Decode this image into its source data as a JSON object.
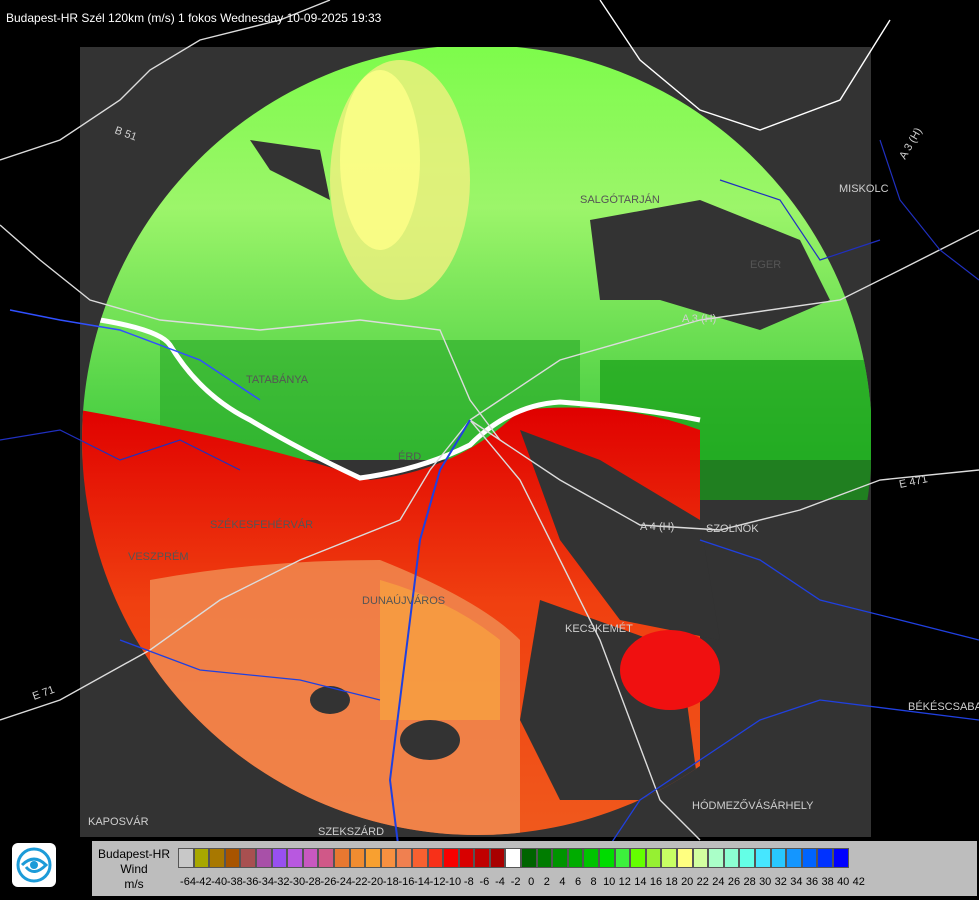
{
  "header": {
    "title": "Budapest-HR Szél 120km (m/s) 1 fokos Wednesday 10-09-2025 19:33"
  },
  "map": {
    "place_labels": [
      {
        "id": "miskolc",
        "text": "MISKOLC"
      },
      {
        "id": "eger",
        "text": "EGER"
      },
      {
        "id": "salgotarjan",
        "text": "SALGÓTARJÁN"
      },
      {
        "id": "tatabanya",
        "text": "TATABÁNYA"
      },
      {
        "id": "erd",
        "text": "ÉRD"
      },
      {
        "id": "szekesfehervar",
        "text": "SZÉKESFEHÉRVÁR"
      },
      {
        "id": "veszprem",
        "text": "VESZPRÉM"
      },
      {
        "id": "dunaujvaros",
        "text": "DUNAÚJVÁROS"
      },
      {
        "id": "kecskemet",
        "text": "KECSKEMÉT"
      },
      {
        "id": "szolnok",
        "text": "SZOLNOK"
      },
      {
        "id": "bekescsaba",
        "text": "BÉKÉSCSABA"
      },
      {
        "id": "hodmezovasarhely",
        "text": "HÓDMEZŐVÁSÁRHELY"
      },
      {
        "id": "kaposvar",
        "text": "KAPOSVÁR"
      },
      {
        "id": "szekszard",
        "text": "SZEKSZÁRD"
      }
    ],
    "road_labels": [
      {
        "id": "b51",
        "text": "B 51"
      },
      {
        "id": "a3h-east",
        "text": "A 3 (H)"
      },
      {
        "id": "a3h-mid",
        "text": "A 3 (H)"
      },
      {
        "id": "e471",
        "text": "E 471"
      },
      {
        "id": "a4h",
        "text": "A 4 (H)"
      },
      {
        "id": "e71",
        "text": "E 71"
      }
    ]
  },
  "legend": {
    "station": "Budapest-HR",
    "quantity": "Wind",
    "unit": "m/s",
    "colors": [
      "#c8c8c8",
      "#a8a800",
      "#a87800",
      "#a85400",
      "#a85050",
      "#a850a8",
      "#9850f0",
      "#b858e0",
      "#c858c0",
      "#d05888",
      "#e87830",
      "#f08c30",
      "#f8a030",
      "#f89040",
      "#f08050",
      "#f86030",
      "#f83018",
      "#f80000",
      "#d80000",
      "#c00000",
      "#a80000",
      "#ffffff",
      "#006400",
      "#007c00",
      "#009400",
      "#00ac00",
      "#00c400",
      "#00dc00",
      "#3cf03c",
      "#64ff00",
      "#96f032",
      "#c8ff64",
      "#ffff80",
      "#d2ffa0",
      "#aaffc8",
      "#8cffd2",
      "#64ffe6",
      "#46e6ff",
      "#28c8ff",
      "#1496ff",
      "#0064ff",
      "#0032ff",
      "#0000ff"
    ],
    "ticks": [
      "-64",
      "-42",
      "-40",
      "-38",
      "-36",
      "-34",
      "-32",
      "-30",
      "-28",
      "-26",
      "-24",
      "-22",
      "-20",
      "-18",
      "-16",
      "-14",
      "-12",
      "-10",
      "-8",
      "-6",
      "-4",
      "-2",
      "0",
      "2",
      "4",
      "6",
      "8",
      "10",
      "12",
      "14",
      "16",
      "18",
      "20",
      "22",
      "24",
      "26",
      "28",
      "30",
      "32",
      "34",
      "36",
      "38",
      "40",
      "42"
    ]
  }
}
